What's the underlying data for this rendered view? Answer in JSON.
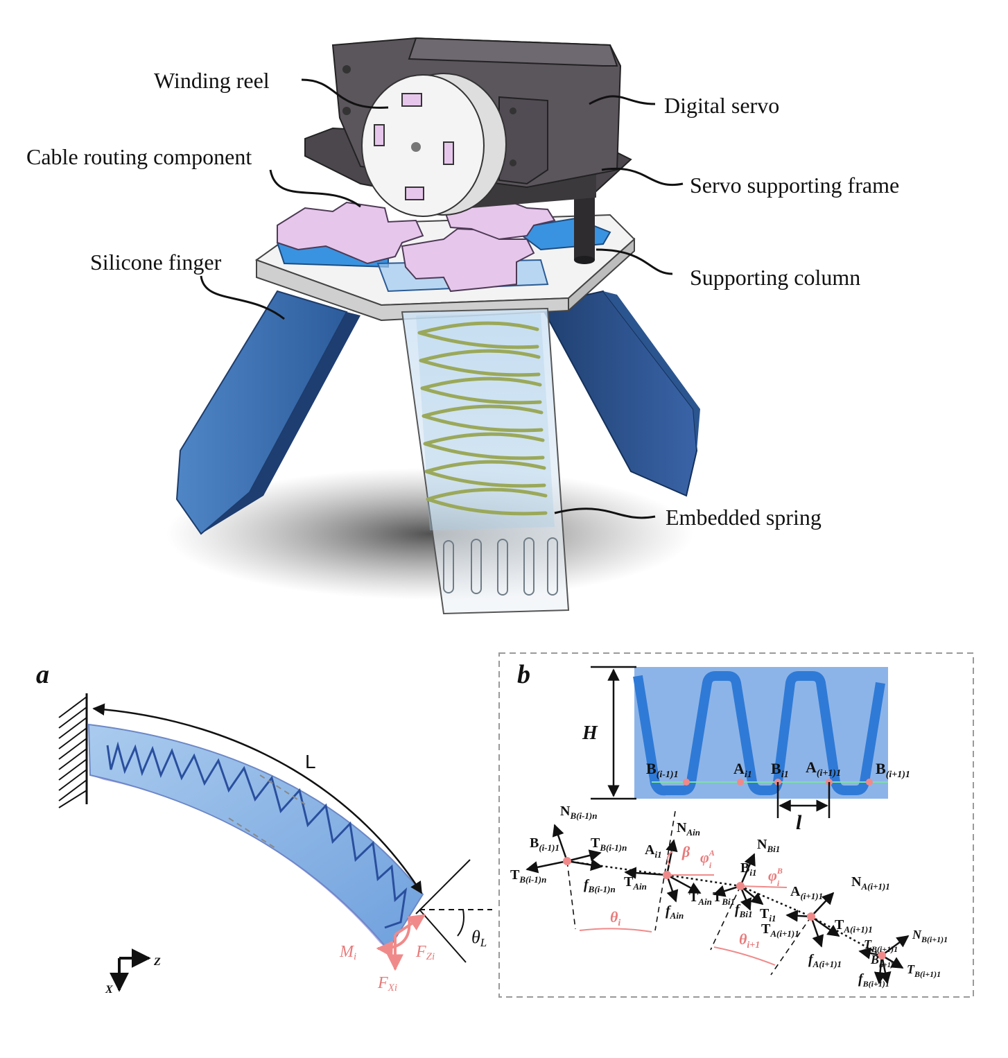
{
  "assembly": {
    "labels": {
      "winding_reel": "Winding reel",
      "cable_routing": "Cable routing component",
      "silicone_finger": "Silicone finger",
      "digital_servo": "Digital servo",
      "servo_frame": "Servo supporting frame",
      "supporting_column": "Supporting column",
      "embedded_spring": "Embedded spring"
    },
    "colors": {
      "finger": "#3d6fb3",
      "servo": "#5b555c",
      "pink": "#e7c6ec",
      "plate": "#f0f0f0",
      "cyan": "#3a93e0"
    }
  },
  "panel_a": {
    "letter": "a",
    "length_label": "L",
    "theta_label": "θ",
    "theta_sub": "L",
    "moment": "M",
    "moment_sub": "i",
    "fz": "F",
    "fz_sub": "Zi",
    "fx": "F",
    "fx_sub": "Xi",
    "axis_z": "Z",
    "axis_x": "X"
  },
  "panel_b": {
    "letter": "b",
    "height_label": "H",
    "pitch_label": "l",
    "points": {
      "b_prev": "B",
      "b_prev_sub": "(i-1)1",
      "a_i": "A",
      "a_i_sub": "i1",
      "b_i": "B",
      "b_i_sub": "i1",
      "a_next": "A",
      "a_next_sub": "(i+1)1",
      "b_next": "B",
      "b_next_sub": "(i+1)1"
    },
    "forces": {
      "n_b_prev": "N",
      "n_b_prev_sub": "B(i-1)n",
      "b_prev1": "B",
      "b_prev1_sub": "(i-1)1",
      "t_b_prev_p": "T",
      "t_b_prev_p_sub": "B(i-1)n",
      "t_b_prev": "T",
      "t_b_prev_sub": "B(i-1)n",
      "f_b_prev": "f",
      "f_b_prev_sub": "B(i-1)n",
      "n_ain": "N",
      "n_ain_sub": "Ain",
      "a_i1": "A",
      "a_i1_sub": "i1",
      "t_ain": "T",
      "t_ain_sub": "Ain",
      "t_ain_p": "T",
      "t_ain_p_sub": "Ain",
      "f_ain": "f",
      "f_ain_sub": "Ain",
      "beta": "β",
      "phi_a": "φ",
      "phi_a_sup": "A",
      "phi_a_sub": "i",
      "phi_b": "φ",
      "phi_b_sup": "B",
      "phi_b_sub": "i",
      "n_bi1": "N",
      "n_bi1_sub": "Bi1",
      "b_i1": "B",
      "b_i1_sub": "i1",
      "t_bi1": "T",
      "t_bi1_sub": "Bi1",
      "t_i1p": "T",
      "t_i1p_sub": "i1",
      "f_bi1": "f",
      "f_bi1_sub": "Bi1",
      "a_n1": "A",
      "a_n1_sub": "(i+1)1",
      "n_an1": "N",
      "n_an1_sub": "A(i+1)1",
      "t_an1": "T",
      "t_an1_sub": "A(i+1)1",
      "t_an1_p": "T",
      "t_an1_p_sub": "A(i+1)1",
      "f_an1": "f",
      "f_an1_sub": "A(i+1)1",
      "t_bn1": "T",
      "t_bn1_sub": "B(i+1)1",
      "b_n1": "B",
      "b_n1_sub": "(i+1)1",
      "n_bn1": "N",
      "n_bn1_sub": "B(i+1)1",
      "t_bn1_p": "T",
      "t_bn1_p_sub": "B(i+1)1",
      "f_bn1": "f",
      "f_bn1_sub": "B(i+1)1",
      "theta_i": "θ",
      "theta_i_sub": "i",
      "theta_n": "θ",
      "theta_n_sub": "i+1"
    }
  }
}
